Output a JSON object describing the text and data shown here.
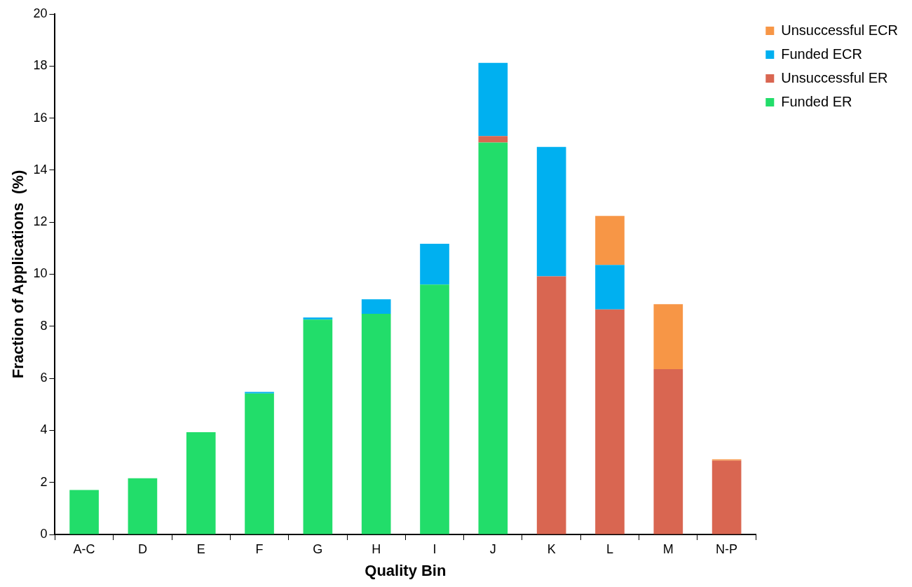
{
  "chart_data": {
    "type": "bar",
    "stacked": true,
    "xlabel": "Quality Bin",
    "ylabel": "Fraction of Applications  (%)",
    "categories": [
      "A-C",
      "D",
      "E",
      "F",
      "G",
      "H",
      "I",
      "J",
      "K",
      "L",
      "M",
      "N-P"
    ],
    "series": [
      {
        "name": "Funded ER",
        "color": "#22dd6a",
        "values": [
          1.71,
          2.16,
          3.93,
          5.42,
          8.26,
          8.48,
          9.6,
          15.06,
          0,
          0,
          0,
          0
        ]
      },
      {
        "name": "Unsuccessful ER",
        "color": "#d96651",
        "values": [
          0,
          0,
          0,
          0,
          0,
          0,
          0,
          0.25,
          9.92,
          8.65,
          6.35,
          2.84
        ]
      },
      {
        "name": "Funded ECR",
        "color": "#00b0f0",
        "values": [
          0,
          0,
          0,
          0.06,
          0.08,
          0.56,
          1.57,
          2.81,
          4.97,
          1.71,
          0,
          0
        ]
      },
      {
        "name": "Unsuccessful ECR",
        "color": "#f79646",
        "values": [
          0,
          0,
          0,
          0,
          0,
          0,
          0,
          0,
          0,
          1.88,
          2.5,
          0.05
        ]
      }
    ],
    "ylim": [
      0,
      20
    ],
    "yticks": [
      0,
      2,
      4,
      6,
      8,
      10,
      12,
      14,
      16,
      18,
      20
    ],
    "grid": false,
    "legend": "top right"
  }
}
